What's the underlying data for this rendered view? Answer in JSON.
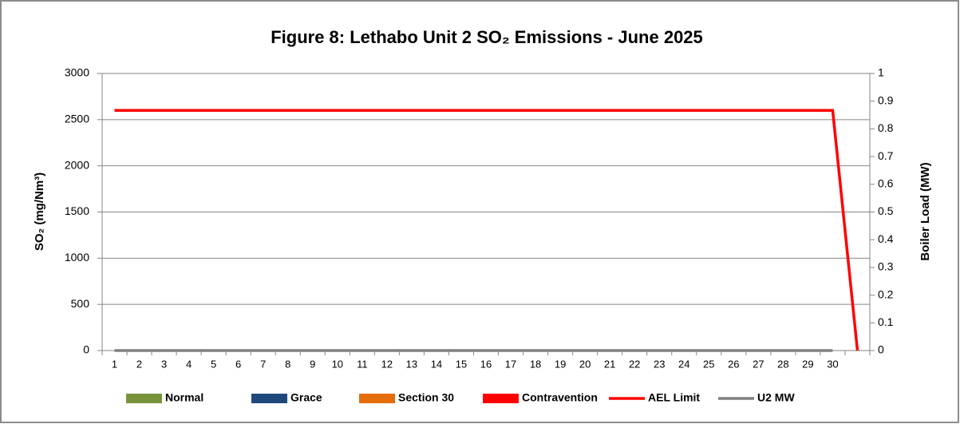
{
  "chart_data": {
    "type": "combo",
    "title": "Figure 8: Lethabo Unit 2 SO₂ Emissions - June 2025",
    "y_label": "SO₂  (mg/Nm³)",
    "y2_label": "Boiler Load (MW)",
    "categories": [
      "1",
      "2",
      "3",
      "4",
      "5",
      "6",
      "7",
      "8",
      "9",
      "10",
      "11",
      "12",
      "13",
      "14",
      "15",
      "16",
      "17",
      "18",
      "19",
      "20",
      "21",
      "22",
      "23",
      "24",
      "25",
      "26",
      "27",
      "28",
      "29",
      "30",
      null
    ],
    "series": [
      {
        "name": "Normal",
        "kind": "bar",
        "color": "#77933c",
        "values": [
          0,
          0,
          0,
          0,
          0,
          0,
          0,
          0,
          0,
          0,
          0,
          0,
          0,
          0,
          0,
          0,
          0,
          0,
          0,
          0,
          0,
          0,
          0,
          0,
          0,
          0,
          0,
          0,
          0,
          0,
          null
        ]
      },
      {
        "name": "Grace",
        "kind": "bar",
        "color": "#1f497d",
        "values": [
          0,
          0,
          0,
          0,
          0,
          0,
          0,
          0,
          0,
          0,
          0,
          0,
          0,
          0,
          0,
          0,
          0,
          0,
          0,
          0,
          0,
          0,
          0,
          0,
          0,
          0,
          0,
          0,
          0,
          0,
          null
        ]
      },
      {
        "name": "Section 30",
        "kind": "bar",
        "color": "#e46c0a",
        "values": [
          0,
          0,
          0,
          0,
          0,
          0,
          0,
          0,
          0,
          0,
          0,
          0,
          0,
          0,
          0,
          0,
          0,
          0,
          0,
          0,
          0,
          0,
          0,
          0,
          0,
          0,
          0,
          0,
          0,
          0,
          null
        ]
      },
      {
        "name": "Contravention",
        "kind": "bar",
        "color": "#ff0000",
        "values": [
          0,
          0,
          0,
          0,
          0,
          0,
          0,
          0,
          0,
          0,
          0,
          0,
          0,
          0,
          0,
          0,
          0,
          0,
          0,
          0,
          0,
          0,
          0,
          0,
          0,
          0,
          0,
          0,
          0,
          0,
          null
        ]
      },
      {
        "name": "AEL Limit",
        "kind": "line",
        "color": "#ff0000",
        "values": [
          2600,
          2600,
          2600,
          2600,
          2600,
          2600,
          2600,
          2600,
          2600,
          2600,
          2600,
          2600,
          2600,
          2600,
          2600,
          2600,
          2600,
          2600,
          2600,
          2600,
          2600,
          2600,
          2600,
          2600,
          2600,
          2600,
          2600,
          2600,
          2600,
          2600,
          0
        ]
      },
      {
        "name": "U2 MW",
        "kind": "line",
        "axis": "y2",
        "color": "#808080",
        "values": [
          0,
          0,
          0,
          0,
          0,
          0,
          0,
          0,
          0,
          0,
          0,
          0,
          0,
          0,
          0,
          0,
          0,
          0,
          0,
          0,
          0,
          0,
          0,
          0,
          0,
          0,
          0,
          0,
          0,
          0,
          null
        ]
      }
    ],
    "ylim": [
      0,
      3000
    ],
    "yticks": [
      0,
      500,
      1000,
      1500,
      2000,
      2500,
      3000
    ],
    "y2lim": [
      0,
      1
    ],
    "y2ticks": [
      0,
      0.1,
      0.2,
      0.3,
      0.4,
      0.5,
      0.6,
      0.7,
      0.8,
      0.9,
      1
    ],
    "grid": true,
    "legend": "bottom"
  }
}
